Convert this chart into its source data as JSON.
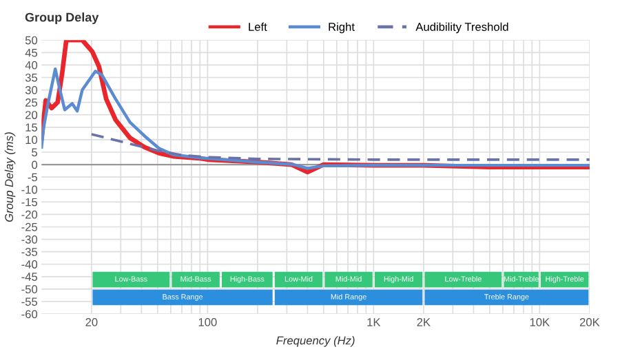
{
  "chart_data": {
    "type": "line",
    "title": "Group Delay",
    "xlabel": "Frequency (Hz)",
    "ylabel": "Group Delay (ms)",
    "log": "x",
    "xlim": [
      10,
      20000
    ],
    "ylim": [
      -60,
      50
    ],
    "xticks": [
      20,
      {
        "value": 30,
        "label": null
      },
      {
        "value": 40,
        "label": null
      },
      {
        "value": 50,
        "label": null
      },
      {
        "value": 60,
        "label": null
      },
      {
        "value": 70,
        "label": null
      },
      {
        "value": 80,
        "label": null
      },
      {
        "value": 90,
        "label": null
      },
      100,
      {
        "value": 200,
        "label": null
      },
      {
        "value": 300,
        "label": null
      },
      {
        "value": 400,
        "label": null
      },
      {
        "value": 500,
        "label": null
      },
      {
        "value": 600,
        "label": null
      },
      {
        "value": 700,
        "label": null
      },
      {
        "value": 800,
        "label": null
      },
      {
        "value": 900,
        "label": null
      },
      {
        "value": 1000,
        "label": "1K"
      },
      {
        "value": 2000,
        "label": "2K"
      },
      {
        "value": 3000,
        "label": null
      },
      {
        "value": 4000,
        "label": null
      },
      {
        "value": 5000,
        "label": null
      },
      {
        "value": 6000,
        "label": null
      },
      {
        "value": 7000,
        "label": null
      },
      {
        "value": 8000,
        "label": null
      },
      {
        "value": 9000,
        "label": null
      },
      {
        "value": 10000,
        "label": "10K"
      },
      {
        "value": 20000,
        "label": "20K"
      }
    ],
    "yticks": [
      -60,
      -55,
      -50,
      -45,
      -40,
      -35,
      -30,
      -25,
      -20,
      -15,
      -10,
      -5,
      0,
      5,
      10,
      15,
      20,
      25,
      30,
      35,
      40,
      45,
      50
    ],
    "grid": true,
    "legend": "top",
    "marker": "none",
    "series": [
      {
        "name": "Left",
        "color": "#e8262b",
        "line_style": "solid",
        "x": [
          10,
          10.6,
          11.5,
          12.5,
          13.3,
          14.1,
          17.6,
          20.2,
          22.2,
          24.5,
          27.9,
          34.1,
          41.7,
          51,
          62,
          90,
          100,
          200,
          320,
          400,
          500,
          1000,
          2000,
          5000,
          10000,
          20000
        ],
        "values": [
          10.7,
          25.8,
          22.7,
          25,
          36.5,
          50,
          50,
          45.4,
          39.3,
          26.4,
          18,
          10.7,
          7,
          4.6,
          3.3,
          2.5,
          2,
          1,
          0,
          -3,
          0,
          -0.3,
          -0.3,
          -1,
          -1,
          -1
        ]
      },
      {
        "name": "Right",
        "color": "#5b8bd0",
        "line_style": "solid",
        "x": [
          10,
          10.3,
          10.9,
          12.1,
          12.9,
          13.8,
          15.3,
          16.4,
          17.6,
          21.1,
          23.1,
          27.9,
          34.1,
          41.7,
          51,
          62,
          90,
          200,
          330,
          400,
          500,
          1000,
          2000,
          5000,
          10000,
          20000
        ],
        "values": [
          7,
          15,
          24,
          38.4,
          30,
          22,
          24.5,
          21.5,
          30,
          37.5,
          36,
          26.4,
          17,
          11.5,
          6.5,
          4,
          2.7,
          1,
          0,
          -1.5,
          -0.5,
          -0.3,
          -0.3,
          -0.3,
          -0.3,
          -0.3
        ]
      },
      {
        "name": "Audibility Treshold",
        "color": "#6a73a8",
        "line_style": "dashed",
        "x": [
          20,
          50,
          70,
          100,
          200,
          1000,
          20000
        ],
        "values": [
          12.2,
          5.6,
          3.8,
          3,
          2.3,
          2,
          2
        ]
      }
    ],
    "ref_lines": [
      {
        "axis": "y",
        "value": 0,
        "color": "#999999"
      }
    ],
    "bands": [
      {
        "axis": "x",
        "from": 20,
        "to": 60,
        "label": "Low-Bass",
        "color": "#36c77a"
      },
      {
        "axis": "x",
        "from": 60,
        "to": 120,
        "label": "Mid-Bass",
        "color": "#36c77a"
      },
      {
        "axis": "x",
        "from": 120,
        "to": 250,
        "label": "High-Bass",
        "color": "#36c77a"
      },
      {
        "axis": "x",
        "from": 250,
        "to": 500,
        "label": "Low-Mid",
        "color": "#36c77a"
      },
      {
        "axis": "x",
        "from": 500,
        "to": 1000,
        "label": "Mid-Mid",
        "color": "#36c77a"
      },
      {
        "axis": "x",
        "from": 1000,
        "to": 2000,
        "label": "High-Mid",
        "color": "#36c77a"
      },
      {
        "axis": "x",
        "from": 2000,
        "to": 6000,
        "label": "Low-Treble",
        "color": "#36c77a"
      },
      {
        "axis": "x",
        "from": 6000,
        "to": 10000,
        "label": "Mid-Treble",
        "color": "#36c77a"
      },
      {
        "axis": "x",
        "from": 10000,
        "to": 20000,
        "label": "High-Treble",
        "color": "#36c77a"
      },
      {
        "axis": "x",
        "from": 20,
        "to": 250,
        "label": "Bass Range",
        "color": "#2b8fde"
      },
      {
        "axis": "x",
        "from": 250,
        "to": 2000,
        "label": "Mid Range",
        "color": "#2b8fde"
      },
      {
        "axis": "x",
        "from": 2000,
        "to": 20000,
        "label": "Treble Range",
        "color": "#2b8fde"
      }
    ]
  }
}
